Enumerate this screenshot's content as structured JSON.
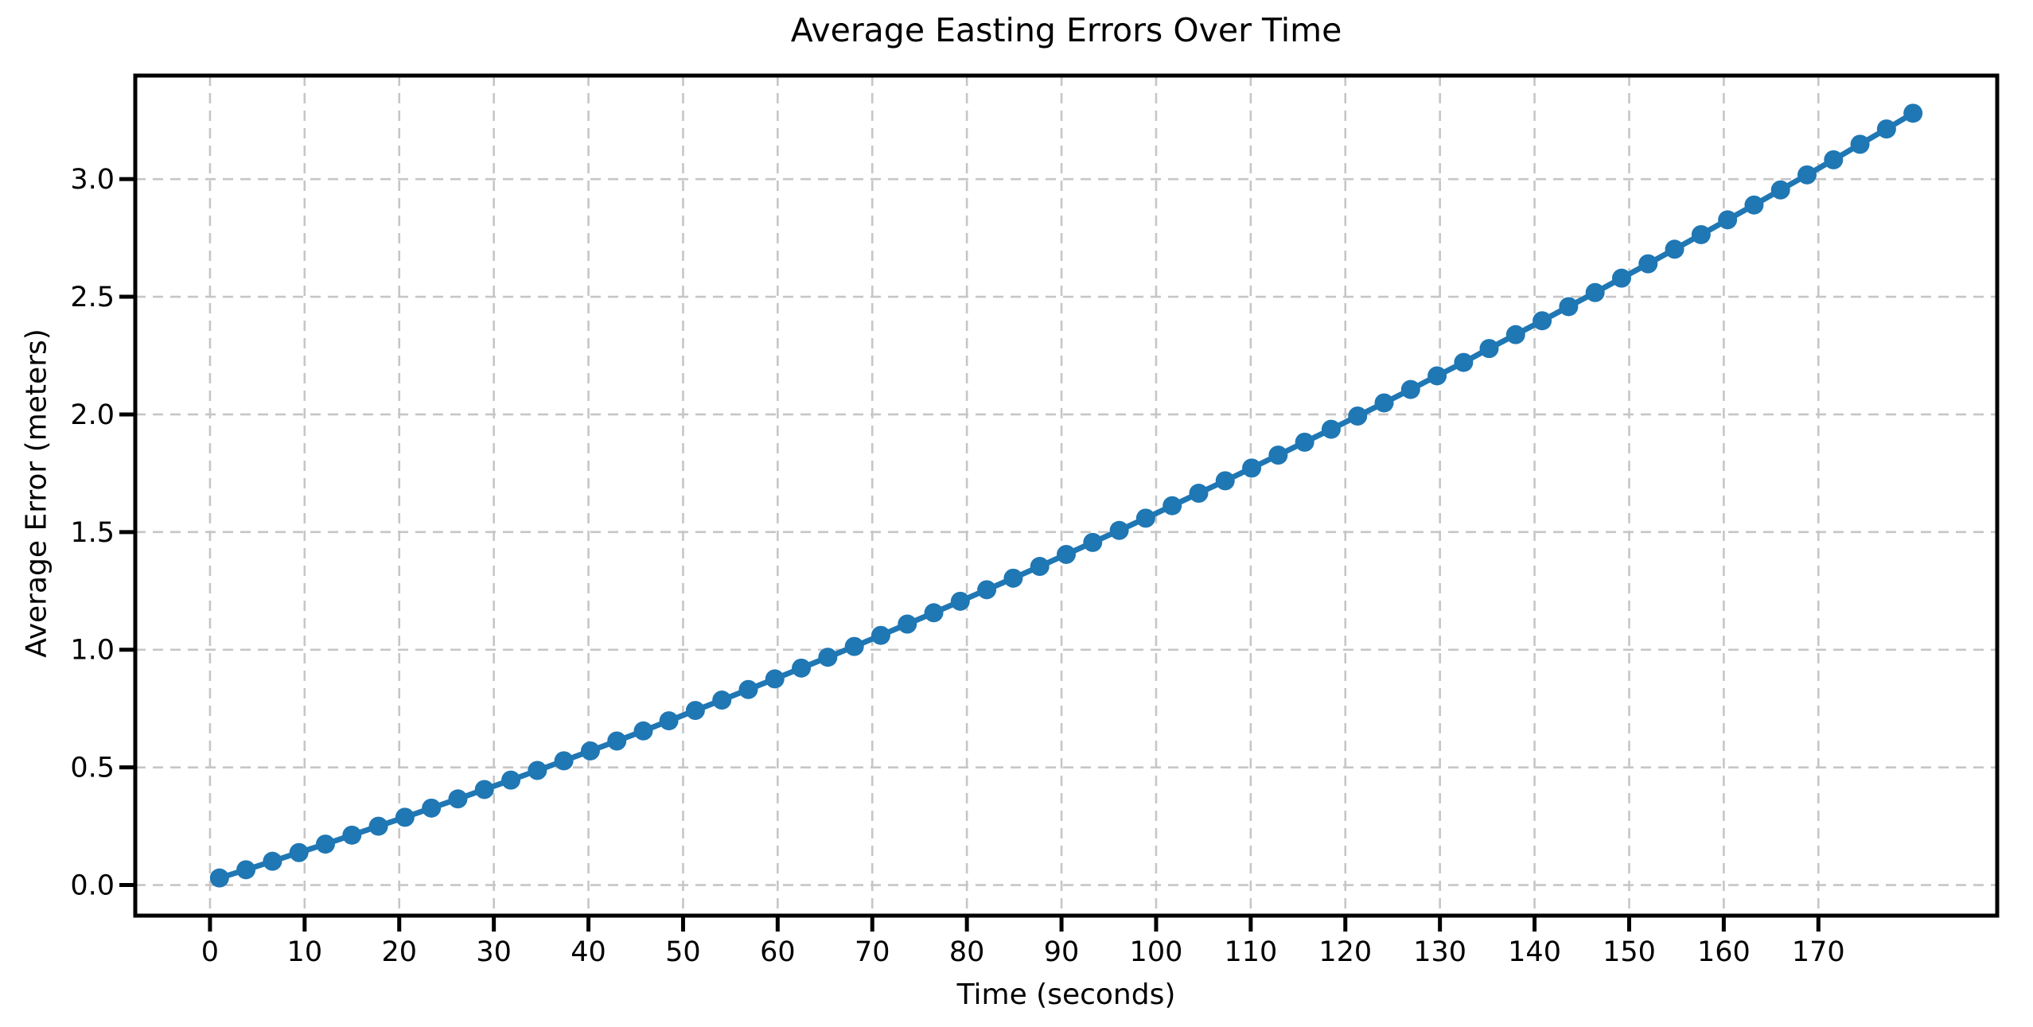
{
  "chart_data": {
    "type": "line",
    "title": "Average Easting Errors Over Time",
    "xlabel": "Time (seconds)",
    "ylabel": "Average Error (meters)",
    "xlim": [
      -7.9,
      188.9
    ],
    "ylim": [
      -0.13,
      3.44
    ],
    "xticks": [
      0,
      10,
      20,
      30,
      40,
      50,
      60,
      70,
      80,
      90,
      100,
      110,
      120,
      130,
      140,
      150,
      160,
      170
    ],
    "yticks": [
      0.0,
      0.5,
      1.0,
      1.5,
      2.0,
      2.5,
      3.0
    ],
    "grid": true,
    "grid_linestyle": "dashed",
    "legend": "none",
    "colors": {
      "series": "#1f77b4",
      "grid": "#c6c6c6",
      "spine": "#000000",
      "background": "#ffffff",
      "text": "#000000"
    },
    "series": [
      {
        "name": "average-easting-error",
        "marker": "circle",
        "color": "#1f77b4",
        "x": [
          1.0,
          3.8,
          6.6,
          9.4,
          12.2,
          15.0,
          17.8,
          20.6,
          23.4,
          26.2,
          29.0,
          31.8,
          34.6,
          37.4,
          40.2,
          43.0,
          45.8,
          48.5,
          51.3,
          54.1,
          56.9,
          59.7,
          62.5,
          65.3,
          68.1,
          70.9,
          73.7,
          76.5,
          79.3,
          82.1,
          84.9,
          87.7,
          90.5,
          93.3,
          96.1,
          98.9,
          101.7,
          104.5,
          107.3,
          110.1,
          112.9,
          115.7,
          118.5,
          121.3,
          124.1,
          126.9,
          129.7,
          132.5,
          135.2,
          138.0,
          140.8,
          143.6,
          146.4,
          149.2,
          152.0,
          154.8,
          157.6,
          160.4,
          163.2,
          166.0,
          168.8,
          171.6,
          174.4,
          177.2,
          180.0
        ],
        "y": [
          0.03,
          0.065,
          0.101,
          0.138,
          0.174,
          0.212,
          0.25,
          0.288,
          0.327,
          0.366,
          0.406,
          0.446,
          0.487,
          0.528,
          0.57,
          0.612,
          0.655,
          0.698,
          0.742,
          0.786,
          0.831,
          0.876,
          0.922,
          0.968,
          1.014,
          1.061,
          1.109,
          1.157,
          1.206,
          1.255,
          1.304,
          1.354,
          1.405,
          1.456,
          1.507,
          1.559,
          1.612,
          1.665,
          1.718,
          1.772,
          1.827,
          1.882,
          1.937,
          1.993,
          2.049,
          2.106,
          2.164,
          2.221,
          2.28,
          2.339,
          2.398,
          2.458,
          2.518,
          2.579,
          2.64,
          2.702,
          2.764,
          2.827,
          2.89,
          2.954,
          3.018,
          3.082,
          3.148,
          3.213,
          3.28
        ]
      }
    ]
  }
}
